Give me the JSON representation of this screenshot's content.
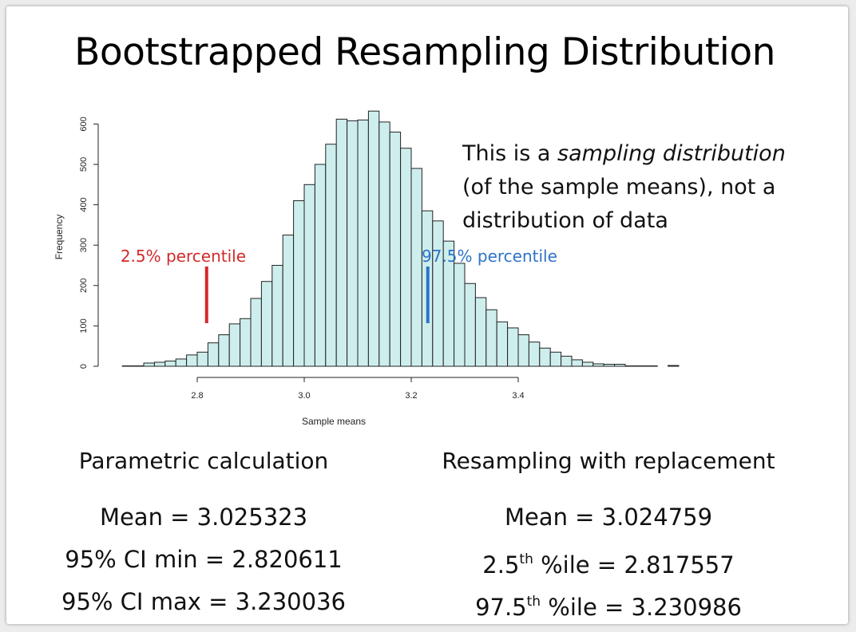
{
  "slide": {
    "title": "Bootstrapped Resampling Distribution",
    "note": {
      "prefix": "This is a ",
      "emphasis": "sampling distribution",
      "rest": "(of the sample means), not a distribution of data"
    },
    "left_column": {
      "heading": "Parametric calculation",
      "mean": "Mean = 3.025323",
      "ci_min": "95% CI min = 2.820611",
      "ci_max": "95% CI max = 3.230036"
    },
    "right_column": {
      "heading": "Resampling with replacement",
      "mean": "Mean = 3.024759",
      "low_prefix": "2.5",
      "low_sup": "th",
      "low_rest": " %ile = 2.817557",
      "high_prefix": "97.5",
      "high_sup": "th",
      "high_rest": " %ile = 3.230986"
    }
  },
  "chart_data": {
    "type": "bar",
    "title": "",
    "xlabel": "Sample means",
    "ylabel": "Frequency",
    "xlim": [
      2.64,
      3.46
    ],
    "ylim": [
      0,
      640
    ],
    "x_ticks": [
      "2.8",
      "3.0",
      "3.2",
      "3.4"
    ],
    "y_ticks": [
      "0",
      "100",
      "200",
      "300",
      "400",
      "500",
      "600"
    ],
    "bin_width": 0.02,
    "bin_start": 2.66,
    "values": [
      1,
      1,
      8,
      10,
      13,
      18,
      28,
      35,
      58,
      78,
      105,
      118,
      168,
      210,
      250,
      325,
      410,
      450,
      500,
      550,
      612,
      608,
      610,
      632,
      605,
      580,
      540,
      490,
      385,
      360,
      310,
      255,
      205,
      170,
      140,
      110,
      95,
      78,
      60,
      45,
      35,
      25,
      16,
      10,
      6,
      5,
      5,
      1,
      1,
      1,
      0,
      2
    ],
    "bar_fill": "#cdeeec",
    "annotations": [
      {
        "label": "2.5% percentile",
        "x": 2.817557,
        "color": "#d32a2a"
      },
      {
        "label": "97.5% percentile",
        "x": 3.230986,
        "color": "#2e73c8"
      }
    ]
  }
}
